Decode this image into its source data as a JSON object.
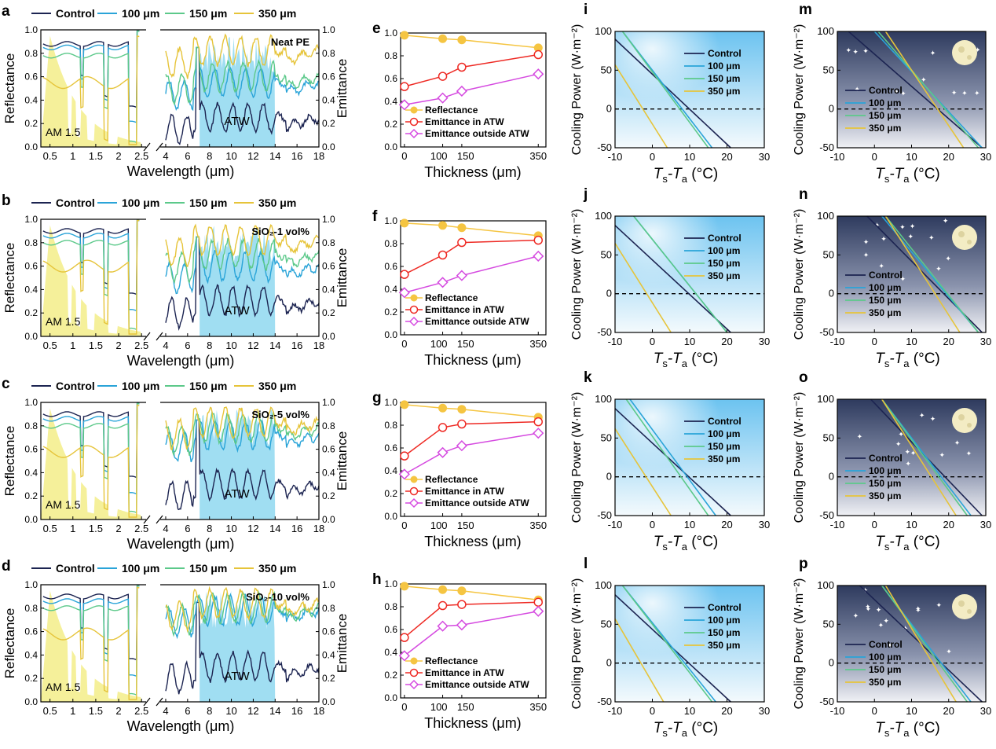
{
  "colors": {
    "control": "#1c2451",
    "p100": "#2aa4d8",
    "p150": "#5cc98a",
    "p350": "#e6c43a",
    "atw": "#8fd8f0",
    "am15": "#f5f09a",
    "refl": "#f5c542",
    "emit_atw": "#ee2a24",
    "emit_out": "#d54ae0"
  },
  "spectra_panels": [
    {
      "letter": "a",
      "label": "Neat PE",
      "legend": [
        "Control",
        "100 μm",
        "150 μm",
        "350 μm"
      ],
      "am15": "AM 1.5",
      "atw": "ATW",
      "ylabel_left": "Reflectance",
      "ylabel_right": "Emittance",
      "xlabel": "Wavelength (μm)",
      "levels": {
        "vis": [
          0.88,
          0.85,
          0.78,
          0.55
        ],
        "ir": [
          0.25,
          0.55,
          0.6,
          0.82
        ]
      }
    },
    {
      "letter": "b",
      "label": "SiO₂-1 vol%",
      "legend": [
        "Control",
        "100 μm",
        "150 μm",
        "350 μm"
      ],
      "am15": "AM 1.5",
      "atw": "ATW",
      "ylabel_left": "Reflectance",
      "ylabel_right": "Emittance",
      "xlabel": "Wavelength (μm)",
      "levels": {
        "vis": [
          0.9,
          0.86,
          0.8,
          0.6
        ],
        "ir": [
          0.3,
          0.6,
          0.7,
          0.82
        ]
      }
    },
    {
      "letter": "c",
      "label": "SiO₂-5 vol%",
      "legend": [
        "Control",
        "100 μm",
        "150 μm",
        "350 μm"
      ],
      "am15": "AM 1.5",
      "atw": "ATW",
      "ylabel_left": "Reflectance",
      "ylabel_right": "Emittance",
      "xlabel": "Wavelength (μm)",
      "levels": {
        "vis": [
          0.9,
          0.86,
          0.8,
          0.58
        ],
        "ir": [
          0.3,
          0.72,
          0.78,
          0.83
        ]
      }
    },
    {
      "letter": "d",
      "label": "SiO₂-10 vol%",
      "legend": [
        "Control",
        "100 μm",
        "150 μm",
        "350 μm"
      ],
      "am15": "AM 1.5",
      "atw": "ATW",
      "ylabel_left": "Reflectance",
      "ylabel_right": "Emittance",
      "xlabel": "Wavelength (μm)",
      "levels": {
        "vis": [
          0.9,
          0.86,
          0.8,
          0.58
        ],
        "ir": [
          0.3,
          0.78,
          0.8,
          0.84
        ]
      }
    }
  ],
  "spectra_axes": {
    "left_ticks": [
      "0.5",
      "1",
      "1.5",
      "2",
      "2.5"
    ],
    "right_ticks": [
      "4",
      "6",
      "8",
      "10",
      "12",
      "14",
      "16",
      "18"
    ],
    "y_ticks": [
      "0.0",
      "0.2",
      "0.4",
      "0.6",
      "0.8",
      "1.0"
    ]
  },
  "thickness_axes": {
    "xlabel": "Thickness (μm)",
    "x_ticks": [
      "0",
      "100",
      "150",
      "350"
    ],
    "y_ticks": [
      "0.0",
      "0.2",
      "0.4",
      "0.6",
      "0.8",
      "1.0"
    ],
    "legend": [
      "Reflectance",
      "Emittance in ATW",
      "Emittance outside ATW"
    ]
  },
  "cooling_axes": {
    "xlabel_main": "T",
    "xlabel_sub1": "s",
    "xlabel_dash": "-T",
    "xlabel_sub2": "a",
    "xlabel_unit": " (°C)",
    "ylabel": "Cooling Power (W·m⁻²)",
    "x_ticks": [
      "-10",
      "0",
      "10",
      "20",
      "30"
    ],
    "y_ticks": [
      "-50",
      "0",
      "50",
      "100"
    ],
    "legend": [
      "Control",
      "100 μm",
      "150 μm",
      "350 μm"
    ]
  },
  "chart_data": [
    {
      "type": "line",
      "panel": "e",
      "x": [
        0,
        100,
        150,
        350
      ],
      "xlim": [
        -10,
        370
      ],
      "ylim": [
        0,
        1
      ],
      "series": [
        {
          "name": "Reflectance",
          "values": [
            0.98,
            0.95,
            0.94,
            0.87
          ]
        },
        {
          "name": "Emittance in ATW",
          "values": [
            0.53,
            0.62,
            0.7,
            0.81
          ]
        },
        {
          "name": "Emittance outside ATW",
          "values": [
            0.37,
            0.43,
            0.49,
            0.64
          ]
        }
      ]
    },
    {
      "type": "line",
      "panel": "f",
      "x": [
        0,
        100,
        150,
        350
      ],
      "xlim": [
        -10,
        370
      ],
      "ylim": [
        0,
        1
      ],
      "series": [
        {
          "name": "Reflectance",
          "values": [
            0.98,
            0.96,
            0.94,
            0.87
          ]
        },
        {
          "name": "Emittance in ATW",
          "values": [
            0.53,
            0.7,
            0.81,
            0.83
          ]
        },
        {
          "name": "Emittance outside ATW",
          "values": [
            0.37,
            0.46,
            0.52,
            0.69
          ]
        }
      ]
    },
    {
      "type": "line",
      "panel": "g",
      "x": [
        0,
        100,
        150,
        350
      ],
      "xlim": [
        -10,
        370
      ],
      "ylim": [
        0,
        1
      ],
      "series": [
        {
          "name": "Reflectance",
          "values": [
            0.98,
            0.95,
            0.94,
            0.87
          ]
        },
        {
          "name": "Emittance in ATW",
          "values": [
            0.53,
            0.78,
            0.81,
            0.83
          ]
        },
        {
          "name": "Emittance outside ATW",
          "values": [
            0.37,
            0.56,
            0.62,
            0.73
          ]
        }
      ]
    },
    {
      "type": "line",
      "panel": "h",
      "x": [
        0,
        100,
        150,
        350
      ],
      "xlim": [
        -10,
        370
      ],
      "ylim": [
        0,
        1
      ],
      "series": [
        {
          "name": "Reflectance",
          "values": [
            0.98,
            0.95,
            0.94,
            0.86
          ]
        },
        {
          "name": "Emittance in ATW",
          "values": [
            0.53,
            0.81,
            0.82,
            0.84
          ]
        },
        {
          "name": "Emittance outside ATW",
          "values": [
            0.37,
            0.63,
            0.64,
            0.76
          ]
        }
      ]
    },
    {
      "type": "line",
      "panel": "i",
      "background": "day",
      "xlim": [
        -10,
        30
      ],
      "ylim": [
        -50,
        100
      ],
      "series": [
        {
          "name": "Control",
          "x": [
            -10,
            21
          ],
          "values": [
            90,
            -50
          ]
        },
        {
          "name": "100 μm",
          "x": [
            -8,
            16
          ],
          "values": [
            100,
            -50
          ]
        },
        {
          "name": "150 μm",
          "x": [
            -8,
            15
          ],
          "values": [
            100,
            -50
          ]
        },
        {
          "name": "350 μm",
          "x": [
            -10,
            4
          ],
          "values": [
            57,
            -50
          ]
        }
      ]
    },
    {
      "type": "line",
      "panel": "j",
      "background": "day",
      "xlim": [
        -10,
        30
      ],
      "ylim": [
        -50,
        100
      ],
      "series": [
        {
          "name": "Control",
          "x": [
            -10,
            21
          ],
          "values": [
            88,
            -50
          ]
        },
        {
          "name": "100 μm",
          "x": [
            -5,
            20
          ],
          "values": [
            100,
            -50
          ]
        },
        {
          "name": "150 μm",
          "x": [
            -5,
            20
          ],
          "values": [
            100,
            -50
          ]
        },
        {
          "name": "350 μm",
          "x": [
            -10,
            5
          ],
          "values": [
            65,
            -50
          ]
        }
      ]
    },
    {
      "type": "line",
      "panel": "k",
      "background": "day",
      "xlim": [
        -10,
        30
      ],
      "ylim": [
        -50,
        100
      ],
      "series": [
        {
          "name": "Control",
          "x": [
            -10,
            21
          ],
          "values": [
            88,
            -50
          ]
        },
        {
          "name": "100 μm",
          "x": [
            -6,
            17
          ],
          "values": [
            100,
            -50
          ]
        },
        {
          "name": "150 μm",
          "x": [
            -7,
            15
          ],
          "values": [
            100,
            -50
          ]
        },
        {
          "name": "350 μm",
          "x": [
            -10,
            5
          ],
          "values": [
            62,
            -50
          ]
        }
      ]
    },
    {
      "type": "line",
      "panel": "l",
      "background": "day",
      "xlim": [
        -10,
        30
      ],
      "ylim": [
        -50,
        100
      ],
      "series": [
        {
          "name": "Control",
          "x": [
            -10,
            21
          ],
          "values": [
            88,
            -50
          ]
        },
        {
          "name": "100 μm",
          "x": [
            -8,
            17
          ],
          "values": [
            100,
            -50
          ]
        },
        {
          "name": "150 μm",
          "x": [
            -8,
            16
          ],
          "values": [
            100,
            -50
          ]
        },
        {
          "name": "350 μm",
          "x": [
            -10,
            3
          ],
          "values": [
            57,
            -50
          ]
        }
      ]
    },
    {
      "type": "line",
      "panel": "m",
      "background": "night",
      "xlim": [
        -10,
        30
      ],
      "ylim": [
        -50,
        100
      ],
      "series": [
        {
          "name": "Control",
          "x": [
            -7,
            29
          ],
          "values": [
            100,
            -50
          ]
        },
        {
          "name": "100 μm",
          "x": [
            0,
            29
          ],
          "values": [
            100,
            -50
          ]
        },
        {
          "name": "150 μm",
          "x": [
            1,
            28
          ],
          "values": [
            100,
            -50
          ]
        },
        {
          "name": "350 μm",
          "x": [
            3,
            24
          ],
          "values": [
            100,
            -50
          ]
        }
      ]
    },
    {
      "type": "line",
      "panel": "n",
      "background": "night",
      "xlim": [
        -10,
        30
      ],
      "ylim": [
        -50,
        100
      ],
      "series": [
        {
          "name": "Control",
          "x": [
            -2,
            29
          ],
          "values": [
            100,
            -50
          ]
        },
        {
          "name": "100 μm",
          "x": [
            2,
            28
          ],
          "values": [
            100,
            -50
          ]
        },
        {
          "name": "150 μm",
          "x": [
            3,
            28
          ],
          "values": [
            100,
            -50
          ]
        },
        {
          "name": "350 μm",
          "x": [
            3,
            23
          ],
          "values": [
            100,
            -50
          ]
        }
      ]
    },
    {
      "type": "line",
      "panel": "o",
      "background": "night",
      "xlim": [
        -10,
        30
      ],
      "ylim": [
        -50,
        100
      ],
      "series": [
        {
          "name": "Control",
          "x": [
            -1,
            29
          ],
          "values": [
            100,
            -50
          ]
        },
        {
          "name": "100 μm",
          "x": [
            2,
            26
          ],
          "values": [
            100,
            -50
          ]
        },
        {
          "name": "150 μm",
          "x": [
            2,
            25
          ],
          "values": [
            100,
            -50
          ]
        },
        {
          "name": "350 μm",
          "x": [
            2,
            22
          ],
          "values": [
            100,
            -50
          ]
        }
      ]
    },
    {
      "type": "line",
      "panel": "p",
      "background": "night",
      "xlim": [
        -10,
        30
      ],
      "ylim": [
        -50,
        100
      ],
      "series": [
        {
          "name": "Control",
          "x": [
            -4,
            29
          ],
          "values": [
            100,
            -50
          ]
        },
        {
          "name": "100 μm",
          "x": [
            2,
            26
          ],
          "values": [
            100,
            -50
          ]
        },
        {
          "name": "150 μm",
          "x": [
            2,
            25
          ],
          "values": [
            100,
            -50
          ]
        },
        {
          "name": "350 μm",
          "x": [
            3,
            22
          ],
          "values": [
            100,
            -50
          ]
        }
      ]
    }
  ],
  "cooling_letters": [
    "i",
    "j",
    "k",
    "l",
    "m",
    "n",
    "o",
    "p"
  ]
}
